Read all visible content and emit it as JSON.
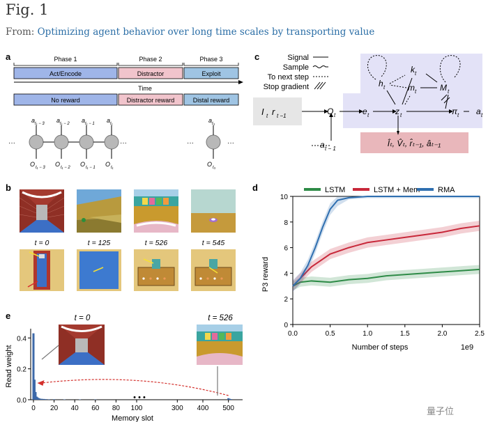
{
  "header": {
    "title": "Fig. 1",
    "from_label": "From:",
    "from_link": "Optimizing agent behavior over long time scales by transporting value"
  },
  "panel_a": {
    "label": "a",
    "phases": [
      "Phase 1",
      "Phase 2",
      "Phase 3"
    ],
    "bars1": [
      "Act/Encode",
      "Distractor",
      "Exploit"
    ],
    "time": "Time",
    "bars2": [
      "No reward",
      "Distractor reward",
      "Distal reward"
    ],
    "actions": [
      "a",
      "a",
      "a",
      "a",
      "a"
    ],
    "action_subs": [
      "t₁ − 3",
      "t₁ − 2",
      "t₁ − 1",
      "t₁",
      "t₃"
    ],
    "obs": [
      "O",
      "O",
      "O",
      "O",
      "O"
    ],
    "obs_subs": [
      "t₁ − 3",
      "t₁ − 2",
      "t₁ − 1",
      "t₁",
      "t₃"
    ],
    "dots": "···"
  },
  "panel_b": {
    "label": "b",
    "times": [
      "t = 0",
      "t = 125",
      "t = 526",
      "t = 545"
    ]
  },
  "panel_c": {
    "label": "c",
    "legend": [
      "Signal",
      "Sample",
      "To next step",
      "Stop gradient"
    ],
    "in_I": "I",
    "in_r": "r",
    "in_r_sub": "t −1",
    "in_I_sub": "t",
    "O": "O",
    "O_sub": "t",
    "e": "e",
    "e_sub": "t",
    "z": "z",
    "z_sub": "t",
    "pi": "π",
    "pi_sub": "t",
    "a": "a",
    "a_sub": "t",
    "h": "h",
    "h_sub": "t",
    "k": "k",
    "k_sub": "t",
    "m": "m",
    "m_sub": "t",
    "M": "M",
    "M_sub": "t",
    "aprev": "a",
    "aprev_sub": "t − 1",
    "recon": "Îₜ, V̂ₜ, r̂ₜ₋₁, âₜ₋₁"
  },
  "panel_d": {
    "label": "d",
    "legend": [
      "LSTM",
      "LSTM + Mem",
      "RMA"
    ],
    "colors": {
      "LSTM": "#2e8b47",
      "LSTM + Mem": "#c8283a",
      "RMA": "#2f6fb0"
    }
  },
  "panel_e": {
    "label": "e",
    "t0": "t = 0",
    "t526": "t = 526",
    "ylabel": "Read weight",
    "xlabel": "Memory slot",
    "xticks": [
      "0",
      "20",
      "40",
      "60",
      "80",
      "100",
      "300",
      "400",
      "500"
    ],
    "yticks": [
      "0.0",
      "0.2",
      "0.4"
    ],
    "ellipsis": "• • •"
  },
  "watermark": "量子位",
  "chart_data": [
    {
      "type": "line",
      "title": "",
      "xlabel": "Number of steps",
      "ylabel": "P3 reward",
      "x_scale_note": "1e9",
      "xlim": [
        0,
        2.5
      ],
      "ylim": [
        0,
        10
      ],
      "xticks": [
        "0.0",
        "0.5",
        "1.0",
        "1.5",
        "2.0",
        "2.5"
      ],
      "yticks": [
        "0",
        "2",
        "4",
        "6",
        "8",
        "10"
      ],
      "legend_position": "top",
      "series": [
        {
          "name": "LSTM",
          "x": [
            0,
            0.1,
            0.25,
            0.5,
            0.75,
            1.0,
            1.25,
            1.5,
            1.75,
            2.0,
            2.25,
            2.5
          ],
          "values": [
            3.0,
            3.3,
            3.4,
            3.3,
            3.5,
            3.6,
            3.8,
            3.9,
            4.0,
            4.1,
            4.2,
            4.3
          ]
        },
        {
          "name": "LSTM + Mem",
          "x": [
            0,
            0.1,
            0.25,
            0.5,
            0.75,
            1.0,
            1.25,
            1.5,
            1.75,
            2.0,
            2.25,
            2.5
          ],
          "values": [
            3.0,
            3.6,
            4.5,
            5.5,
            6.0,
            6.4,
            6.6,
            6.8,
            7.0,
            7.2,
            7.5,
            7.7
          ]
        },
        {
          "name": "RMA",
          "x": [
            0,
            0.1,
            0.2,
            0.3,
            0.4,
            0.5,
            0.6,
            0.75,
            1.0,
            1.5,
            2.0,
            2.5
          ],
          "values": [
            3.0,
            3.6,
            4.6,
            6.0,
            7.6,
            9.0,
            9.7,
            9.9,
            10,
            10,
            10,
            10
          ]
        }
      ]
    },
    {
      "type": "bar",
      "title": "",
      "xlabel": "Memory slot",
      "ylabel": "Read weight",
      "ylim": [
        0,
        0.46
      ],
      "x": [
        0,
        1,
        2,
        3,
        4,
        5,
        6,
        8,
        10,
        12,
        15,
        20,
        30,
        45,
        60
      ],
      "values": [
        0.43,
        0.13,
        0.05,
        0.02,
        0.015,
        0.01,
        0.008,
        0.006,
        0.005,
        0.004,
        0.003,
        0.003,
        0.002,
        0.002,
        0.002
      ],
      "right_x": [
        500,
        505,
        510
      ],
      "right_values": [
        0.01,
        0.006,
        0.004
      ]
    }
  ]
}
